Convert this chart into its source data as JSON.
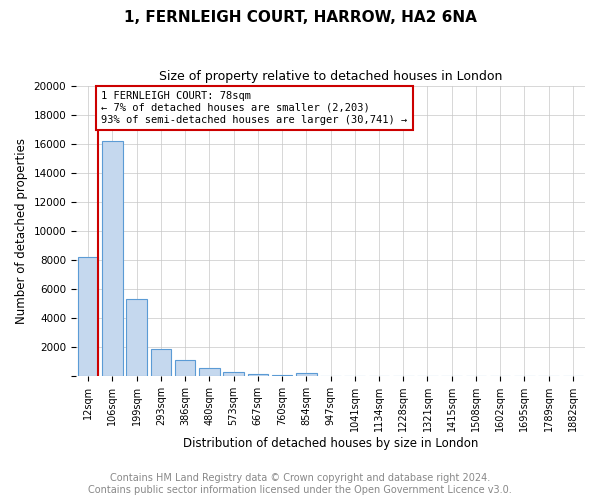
{
  "title": "1, FERNLEIGH COURT, HARROW, HA2 6NA",
  "subtitle": "Size of property relative to detached houses in London",
  "xlabel": "Distribution of detached houses by size in London",
  "ylabel": "Number of detached properties",
  "footer_line1": "Contains HM Land Registry data © Crown copyright and database right 2024.",
  "footer_line2": "Contains public sector information licensed under the Open Government Licence v3.0.",
  "annotation_line1": "1 FERNLEIGH COURT: 78sqm",
  "annotation_line2": "← 7% of detached houses are smaller (2,203)",
  "annotation_line3": "93% of semi-detached houses are larger (30,741) →",
  "categories": [
    "12sqm",
    "106sqm",
    "199sqm",
    "293sqm",
    "386sqm",
    "480sqm",
    "573sqm",
    "667sqm",
    "760sqm",
    "854sqm",
    "947sqm",
    "1041sqm",
    "1134sqm",
    "1228sqm",
    "1321sqm",
    "1415sqm",
    "1508sqm",
    "1602sqm",
    "1695sqm",
    "1789sqm",
    "1882sqm"
  ],
  "values": [
    8200,
    16200,
    5300,
    1900,
    1100,
    600,
    300,
    150,
    100,
    200,
    0,
    0,
    0,
    0,
    0,
    0,
    0,
    0,
    0,
    0,
    0
  ],
  "bar_color": "#c5d8ee",
  "bar_edge_color": "#5b9bd5",
  "red_line_x": 0.42,
  "annotation_box_edge": "#cc0000",
  "background_color": "#ffffff",
  "ylim": [
    0,
    20000
  ],
  "yticks": [
    0,
    2000,
    4000,
    6000,
    8000,
    10000,
    12000,
    14000,
    16000,
    18000,
    20000
  ],
  "grid_color": "#c8c8c8",
  "title_fontsize": 11,
  "subtitle_fontsize": 9,
  "axis_label_fontsize": 8.5,
  "tick_fontsize": 7.5,
  "footer_fontsize": 7
}
